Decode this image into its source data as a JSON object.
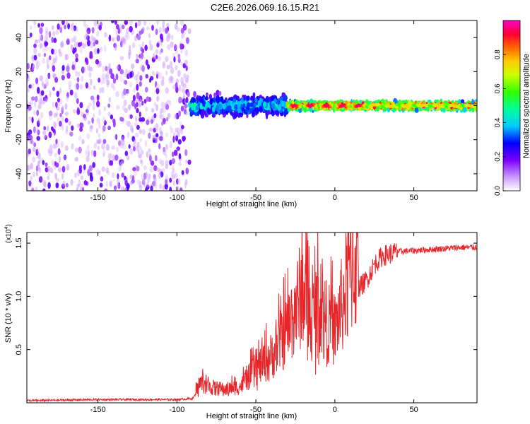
{
  "title": "C2E6.2026.069.16.15.R21",
  "chart_data": [
    {
      "type": "heatmap",
      "name": "spectrogram",
      "xlabel": "Height of straight line (km)",
      "ylabel": "Frequency (Hz)",
      "xlim": [
        -195,
        90
      ],
      "ylim": [
        -50,
        50
      ],
      "x_ticks": [
        -150,
        -100,
        -50,
        0,
        50
      ],
      "y_ticks": [
        -40,
        -20,
        0,
        20,
        40
      ],
      "grid": false,
      "description_of_signal": [
        {
          "x_from": -195,
          "x_to": -92,
          "freq_center": 0,
          "freq_spread": 50,
          "amplitude": 0.12
        },
        {
          "x_from": -92,
          "x_to": -30,
          "freq_center": 0,
          "freq_spread": 8,
          "amplitude": 0.35
        },
        {
          "x_from": -30,
          "x_to": 90,
          "freq_center": 0,
          "freq_spread": 3,
          "amplitude": 0.75
        }
      ],
      "colorbar": {
        "label": "Normalized spectral amplitude",
        "range": [
          0,
          1
        ],
        "ticks": [
          0.0,
          0.2,
          0.4,
          0.6,
          0.8
        ],
        "tick_labels": [
          "0.0",
          "0.2",
          "0.4",
          "0.6",
          "0.8"
        ],
        "colormap": "rainbow (white-violet-blue-cyan-green-yellow-orange-red-magenta)"
      }
    },
    {
      "type": "line",
      "name": "snr",
      "xlabel": "Height of straight line (km)",
      "ylabel": "SNR (10 * v/v)",
      "exponent_label": "(x10",
      "exponent_sup": "4",
      "exponent_close": ")",
      "xlim": [
        -195,
        90
      ],
      "ylim": [
        0,
        1.6
      ],
      "x_ticks": [
        -150,
        -100,
        -50,
        0,
        50
      ],
      "y_ticks": [
        0.5,
        1.0,
        1.5
      ],
      "y_tick_labels": [
        "0.5",
        "1.0",
        "1.5"
      ],
      "color": "#e8262a",
      "series": [
        {
          "name": "SNR",
          "x": [
            -195,
            -150,
            -100,
            -90,
            -85,
            -80,
            -70,
            -60,
            -50,
            -40,
            -30,
            -25,
            -20,
            -15,
            -10,
            -5,
            0,
            5,
            10,
            20,
            25,
            30,
            40,
            50,
            60,
            70,
            80,
            90
          ],
          "y": [
            0.02,
            0.03,
            0.03,
            0.04,
            0.15,
            0.12,
            0.1,
            0.12,
            0.25,
            0.35,
            0.55,
            0.7,
            0.85,
            0.6,
            0.75,
            0.6,
            0.55,
            0.75,
            1.0,
            1.15,
            1.3,
            1.38,
            1.42,
            1.43,
            1.44,
            1.45,
            1.46,
            1.46
          ]
        }
      ]
    }
  ]
}
